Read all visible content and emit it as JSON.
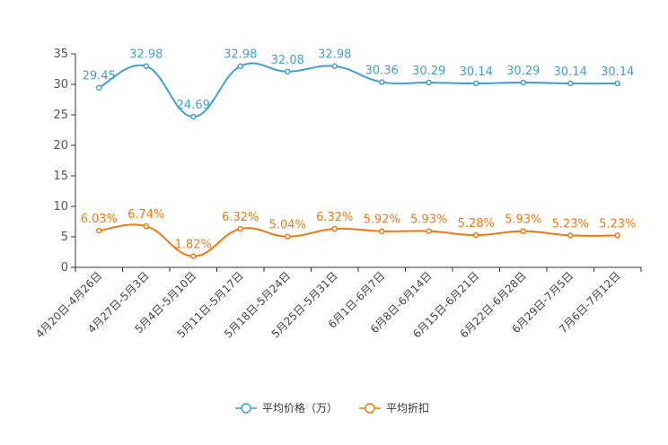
{
  "chart_data": {
    "type": "line",
    "title": "",
    "xlabel": "",
    "ylabel": "",
    "ylim": [
      0,
      35
    ],
    "yticks": [
      0,
      5,
      10,
      15,
      20,
      25,
      30,
      35
    ],
    "categories": [
      "4月20日-4月26日",
      "4月27日-5月3日",
      "5月4日-5月10日",
      "5月11日-5月17日",
      "5月18日-5月24日",
      "5月25日-5月31日",
      "6月1日-6月7日",
      "6月8日-6月14日",
      "6月15日-6月21日",
      "6月22日-6月28日",
      "6月29日-7月5日",
      "7月6日-7月12日"
    ],
    "series": [
      {
        "name": "平均价格（万）",
        "color": "#3d9fcf",
        "values": [
          29.45,
          32.98,
          24.69,
          32.98,
          32.08,
          32.98,
          30.36,
          30.29,
          30.14,
          30.29,
          30.14,
          30.14
        ],
        "labels": [
          "29.45",
          "32.98",
          "24.69",
          "32.98",
          "32.08",
          "32.98",
          "30.36",
          "30.29",
          "30.14",
          "30.29",
          "30.14",
          "30.14"
        ]
      },
      {
        "name": "平均折扣",
        "color": "#f07810",
        "values": [
          6.03,
          6.74,
          1.82,
          6.32,
          5.04,
          6.32,
          5.92,
          5.93,
          5.28,
          5.93,
          5.23,
          5.23
        ],
        "labels": [
          "6.03%",
          "6.74%",
          "1.82%",
          "6.32%",
          "5.04%",
          "6.32%",
          "5.92%",
          "5.93%",
          "5.28%",
          "5.93%",
          "5.23%",
          "5.23%"
        ]
      }
    ],
    "legend_position": "bottom-center"
  }
}
